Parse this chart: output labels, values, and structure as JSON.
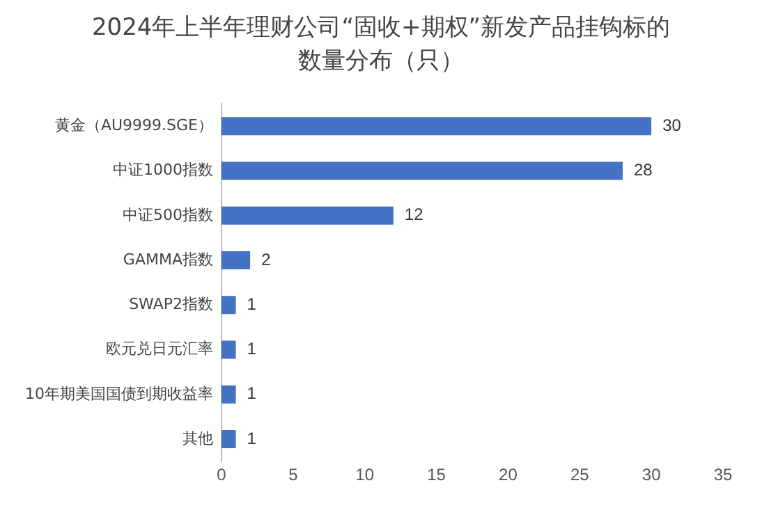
{
  "chart_data": {
    "type": "bar",
    "orientation": "horizontal",
    "title": "2024年上半年理财公司“固收+期权”新发产品挂钩标的数量分布（只）",
    "categories": [
      "黄金（AU9999.SGE）",
      "中证1000指数",
      "中证500指数",
      "GAMMA指数",
      "SWAP2指数",
      "欧元兑日元汇率",
      "10年期美国国债到期收益率",
      "其他"
    ],
    "values": [
      30,
      28,
      12,
      2,
      1,
      1,
      1,
      1
    ],
    "color": "#4472c4",
    "xlim": [
      0,
      35
    ],
    "xticks": [
      0,
      5,
      10,
      15,
      20,
      25,
      30,
      35
    ],
    "grid": false,
    "data_labels": true
  }
}
